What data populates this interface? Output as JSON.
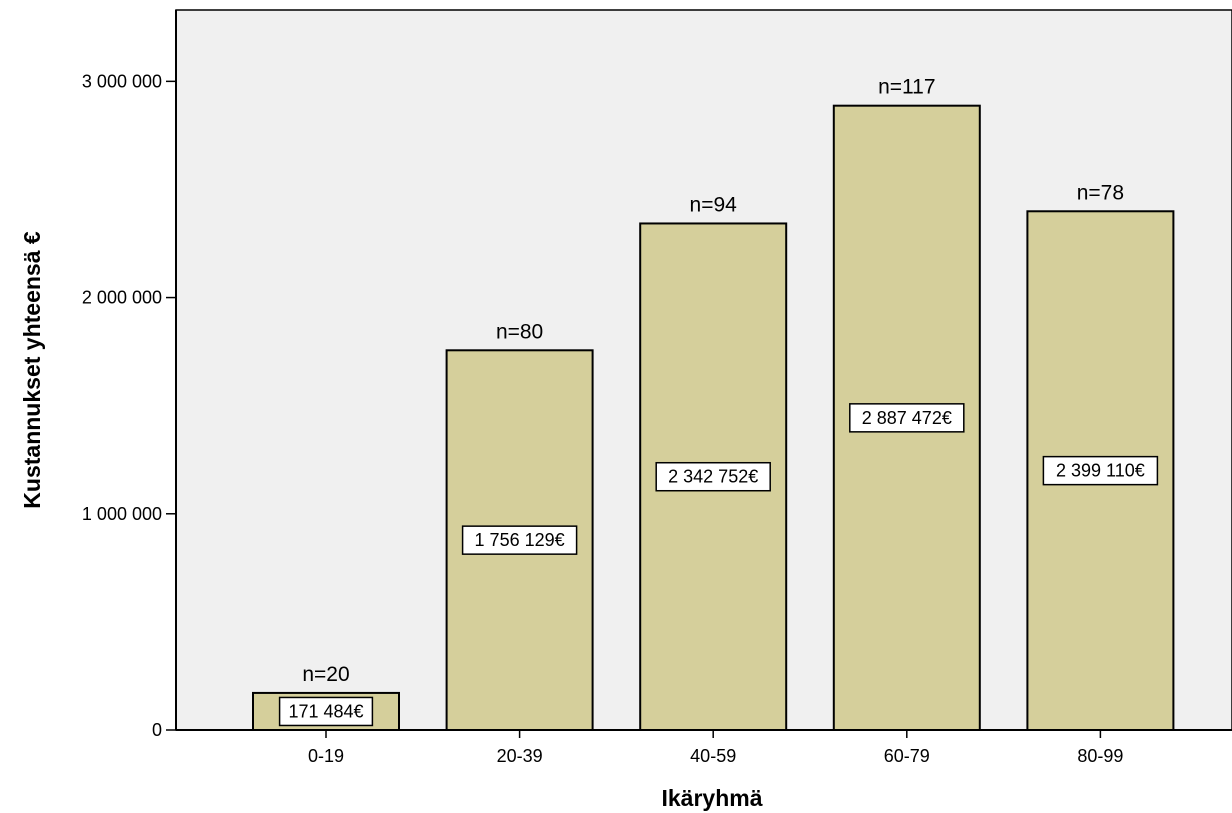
{
  "colors": {
    "plot_background": "#f0f0f0",
    "bar_fill": "#d5cf9b",
    "bar_stroke": "#000000",
    "label_box": "#ffffff"
  },
  "chart_data": {
    "type": "bar",
    "title": "",
    "xlabel": "Ikäryhmä",
    "ylabel": "Kustannukset yhteensä €",
    "categories": [
      "0-19",
      "20-39",
      "40-59",
      "60-79",
      "80-99"
    ],
    "values": [
      171484,
      1756129,
      2342752,
      2887472,
      2399110
    ],
    "value_labels": [
      "171 484€",
      "1 756 129€",
      "2 342 752€",
      "2 887 472€",
      "2 399 110€"
    ],
    "count_labels": [
      "n=20",
      "n=80",
      "n=94",
      "n=117",
      "n=78"
    ],
    "ylim": [
      0,
      3330000
    ],
    "yticks": [
      0,
      1000000,
      2000000,
      3000000
    ],
    "ytick_labels": [
      "0",
      "1 000 000",
      "2 000 000",
      "3 000 000"
    ],
    "grid": false,
    "legend": "none"
  }
}
